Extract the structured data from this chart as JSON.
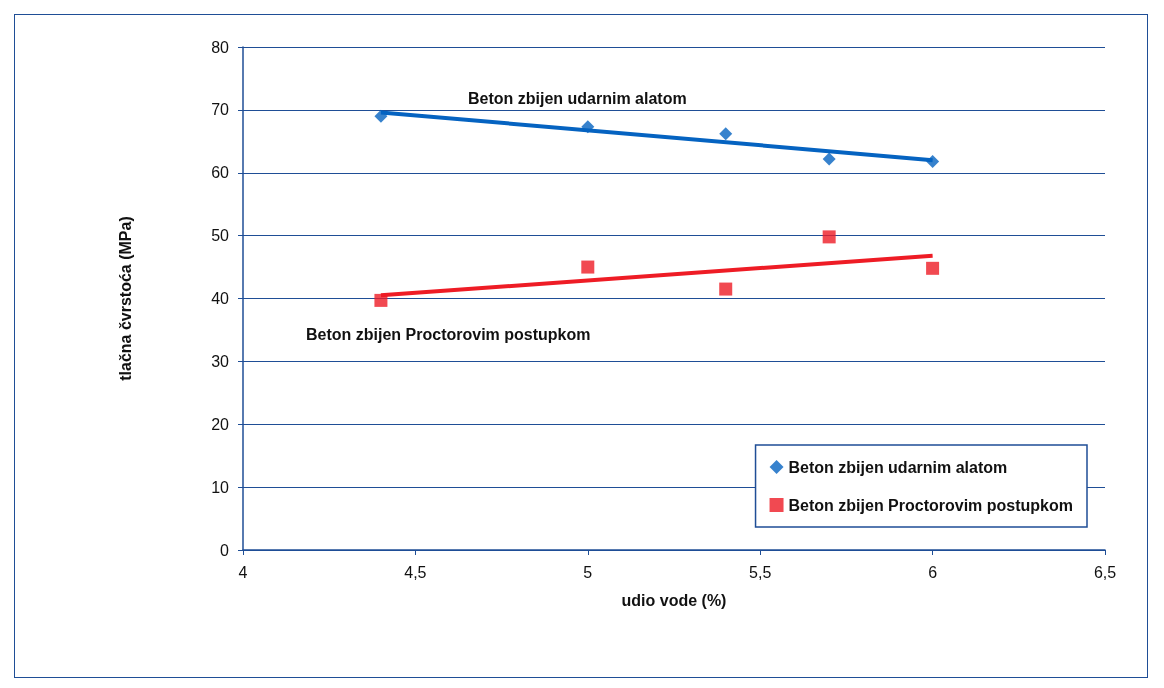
{
  "chart_data": {
    "type": "scatter",
    "xlabel": "udio vode (%)",
    "ylabel": "tlačna čvrstoća (MPa)",
    "xlim": [
      4,
      6.5
    ],
    "xticks": [
      4,
      {
        "value": 4.5,
        "label": "4,5"
      },
      5,
      {
        "value": 5.5,
        "label": "5,5"
      },
      6,
      {
        "value": 6.5,
        "label": "6,5"
      }
    ],
    "ylim": [
      0,
      80
    ],
    "yticks": [
      0,
      10,
      20,
      30,
      40,
      50,
      60,
      70,
      80
    ],
    "grid": "y",
    "legend": "bottom right",
    "series": [
      {
        "name": "Beton zbijen udarnim alatom",
        "marker": "diamond",
        "color": "#0563c1",
        "x": [
          4.4,
          5,
          5.4,
          5.7,
          6
        ],
        "values": [
          69,
          67.3,
          66.2,
          62.2,
          61.8
        ]
      },
      {
        "name": "Beton zbijen Proctorovim postupkom",
        "marker": "square",
        "color": "#ee1c25",
        "x": [
          4.4,
          5,
          5.4,
          5.7,
          6
        ],
        "values": [
          39.7,
          45,
          41.5,
          49.8,
          44.8
        ]
      },
      {
        "type": "line",
        "marker": "none",
        "color": "#0563c1",
        "x": [
          4.4,
          6
        ],
        "values": [
          69.6,
          62
        ]
      },
      {
        "type": "line",
        "marker": "none",
        "color": "#ee1c25",
        "x": [
          4.4,
          6
        ],
        "values": [
          40.5,
          46.8
        ]
      }
    ],
    "annotations": [
      "Beton zbijen udarnim alatom",
      "Beton zbijen Proctorovim postupkom"
    ]
  }
}
